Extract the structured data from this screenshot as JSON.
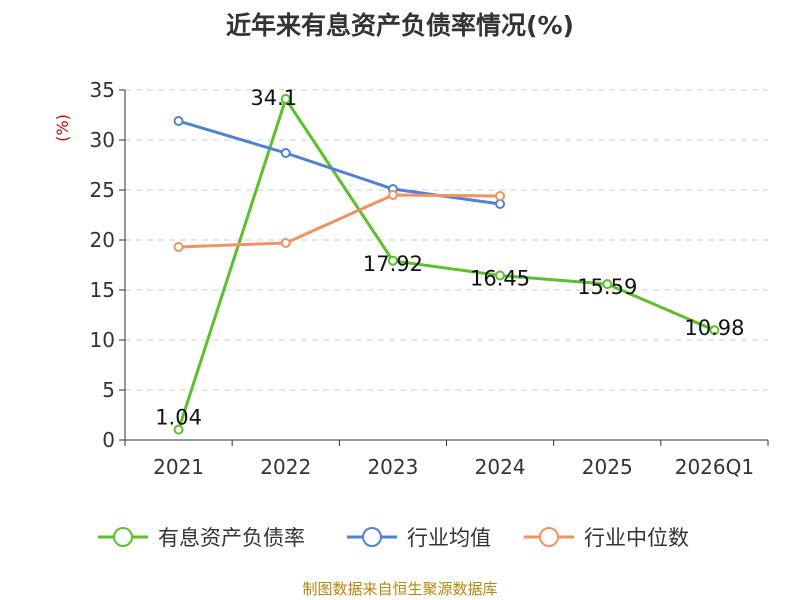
{
  "chart_data": {
    "type": "line",
    "title": "近年来有息资产负债率情况(%)",
    "ylabel": "(%)",
    "categories": [
      "2021",
      "2022",
      "2023",
      "2024",
      "2025",
      "2026Q1"
    ],
    "ylim": [
      0,
      35
    ],
    "yticks": [
      0,
      5,
      10,
      15,
      20,
      25,
      30,
      35
    ],
    "grid": true,
    "legend_position": "bottom",
    "series": [
      {
        "name": "有息资产负债率",
        "color": "#5cc02b",
        "values": [
          1.04,
          34.1,
          17.92,
          16.45,
          15.59,
          10.98
        ],
        "labels": [
          "1.04",
          "34.1",
          "17.92",
          "16.45",
          "15.59",
          "10.98"
        ]
      },
      {
        "name": "行业均值",
        "color": "#4f81d9",
        "values": [
          31.9,
          28.7,
          25.1,
          23.6,
          null,
          null
        ]
      },
      {
        "name": "行业中位数",
        "color": "#f49160",
        "values": [
          19.3,
          19.7,
          24.5,
          24.4,
          null,
          null
        ]
      }
    ],
    "source": "制图数据来自恒生聚源数据库"
  }
}
